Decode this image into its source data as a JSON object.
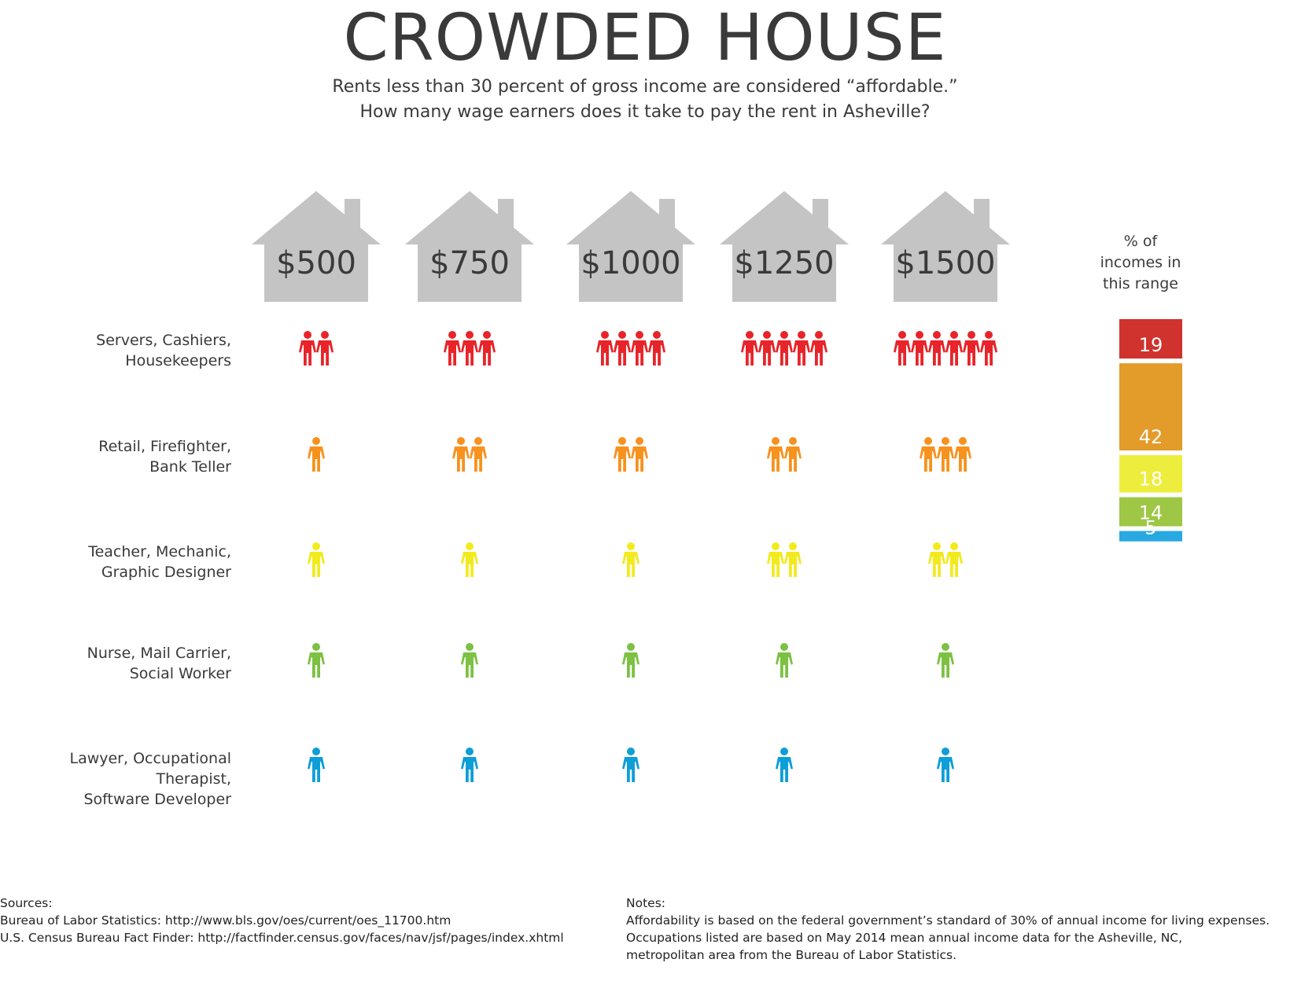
{
  "title": "CROWDED HOUSE",
  "subtitle_line1": "Rents less than 30 percent of gross income are considered “affordable.”",
  "subtitle_line2": "How many wage earners does it take to pay the rent in Asheville?",
  "percent_header": [
    "% of",
    "incomes in",
    "this range"
  ],
  "chart_data": {
    "type": "pictogram",
    "categories": [
      "$500",
      "$750",
      "$1000",
      "$1250",
      "$1500"
    ],
    "series": [
      {
        "name": "Servers, Cashiers, Housekeepers",
        "label_lines": [
          "Servers, Cashiers,",
          "Housekeepers"
        ],
        "color": "#e8242a",
        "values": [
          2,
          3,
          4,
          5,
          6
        ],
        "percent_of_incomes": 19
      },
      {
        "name": "Retail, Firefighter, Bank Teller",
        "label_lines": [
          "Retail, Firefighter,",
          "Bank Teller"
        ],
        "color": "#f7921e",
        "values": [
          1,
          2,
          2,
          2,
          3
        ],
        "percent_of_incomes": 42
      },
      {
        "name": "Teacher, Mechanic, Graphic Designer",
        "label_lines": [
          "Teacher, Mechanic,",
          "Graphic Designer"
        ],
        "color": "#f2ea1d",
        "values": [
          1,
          1,
          1,
          2,
          2
        ],
        "percent_of_incomes": 18
      },
      {
        "name": "Nurse, Mail Carrier, Social Worker",
        "label_lines": [
          "Nurse, Mail Carrier,",
          "Social Worker"
        ],
        "color": "#7cc142",
        "values": [
          1,
          1,
          1,
          1,
          1
        ],
        "percent_of_incomes": 14
      },
      {
        "name": "Lawyer, Occupational Therapist, Software Developer",
        "label_lines": [
          "Lawyer, Occupational Therapist,",
          "Software Developer"
        ],
        "color": "#0d9ed8",
        "values": [
          1,
          1,
          1,
          1,
          1
        ],
        "percent_of_incomes": 5
      }
    ],
    "percent_bar": {
      "values": [
        19,
        42,
        18,
        14,
        5
      ],
      "colors": [
        "#d0332d",
        "#e39b2a",
        "#eded3e",
        "#9dc744",
        "#28a9e1"
      ]
    },
    "house_color": "#c4c4c4"
  },
  "sources": {
    "heading": "Sources:",
    "lines": [
      "Bureau of Labor Statistics: http://www.bls.gov/oes/current/oes_11700.htm",
      "U.S. Census Bureau Fact Finder: http://factfinder.census.gov/faces/nav/jsf/pages/index.xhtml"
    ]
  },
  "notes": {
    "heading": "Notes:",
    "lines": [
      "Affordability is based on the federal government’s standard of 30% of annual income for living expenses.",
      "Occupations listed are based on May 2014 mean annual income data for the Asheville, NC,",
      "metropolitan area from the Bureau of Labor Statistics."
    ]
  }
}
